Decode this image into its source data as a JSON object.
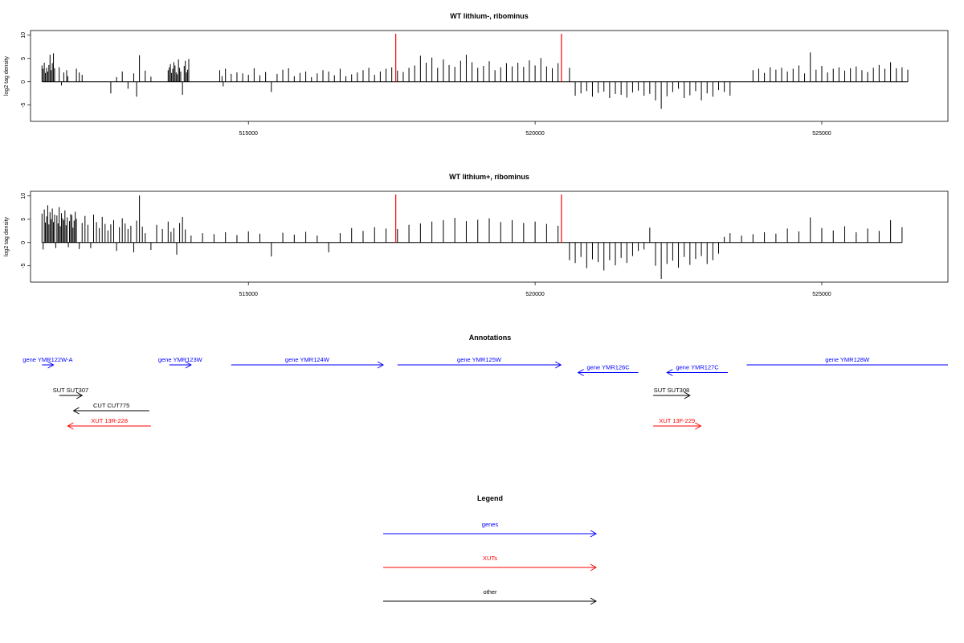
{
  "chart_data": [
    {
      "type": "bar",
      "title": "WT lithium-, ribominus",
      "xlabel": "",
      "ylabel": "log2 tag density",
      "xlim": [
        511200,
        527200
      ],
      "ylim": [
        -8.5,
        11
      ],
      "yticks": [
        -5,
        0,
        5,
        10
      ],
      "xticks": [
        515000,
        520000,
        525000
      ],
      "highlight_lines_x": [
        517570,
        520460
      ],
      "highlight_color": "#ff0000",
      "bar_color": "#000000",
      "x": [
        511400,
        511420,
        511440,
        511460,
        511480,
        511500,
        511520,
        511540,
        511560,
        511580,
        511600,
        511620,
        511700,
        511740,
        511780,
        511830,
        511850,
        512000,
        512050,
        512100,
        512600,
        512700,
        512800,
        512900,
        513000,
        513050,
        513100,
        513200,
        513300,
        513600,
        513620,
        513640,
        513660,
        513680,
        513700,
        513720,
        513740,
        513760,
        513780,
        513800,
        513820,
        513850,
        513880,
        513900,
        513920,
        513940,
        513960,
        514500,
        514540,
        514560,
        514600,
        514700,
        514800,
        514900,
        515000,
        515100,
        515200,
        515300,
        515400,
        515500,
        515600,
        515700,
        515800,
        515900,
        516000,
        516100,
        516200,
        516300,
        516400,
        516500,
        516600,
        516700,
        516800,
        516900,
        517000,
        517100,
        517200,
        517300,
        517400,
        517500,
        517600,
        517700,
        517800,
        517900,
        518000,
        518100,
        518200,
        518300,
        518400,
        518500,
        518600,
        518700,
        518800,
        518900,
        519000,
        519100,
        519200,
        519300,
        519400,
        519500,
        519600,
        519700,
        519800,
        519900,
        520000,
        520100,
        520200,
        520300,
        520400,
        520600,
        520700,
        520800,
        520900,
        521000,
        521100,
        521200,
        521300,
        521400,
        521500,
        521600,
        521700,
        521800,
        521900,
        522000,
        522100,
        522200,
        522300,
        522400,
        522500,
        522600,
        522700,
        522800,
        522900,
        523000,
        523100,
        523200,
        523300,
        523400,
        523800,
        523900,
        524000,
        524100,
        524200,
        524300,
        524400,
        524500,
        524600,
        524700,
        524800,
        524900,
        525000,
        525100,
        525200,
        525300,
        525400,
        525500,
        525600,
        525700,
        525800,
        525900,
        526000,
        526100,
        526200,
        526300,
        526400,
        526500
      ],
      "values": [
        3.5,
        2.8,
        4.1,
        1.9,
        3.0,
        2.2,
        3.6,
        5.8,
        2.5,
        4.0,
        6.1,
        2.9,
        3.1,
        -0.8,
        2.0,
        2.5,
        1.2,
        2.8,
        2.0,
        1.5,
        -2.5,
        1.0,
        2.2,
        -1.5,
        1.8,
        -3.2,
        5.7,
        2.4,
        1.1,
        2.5,
        3.1,
        3.8,
        1.9,
        2.8,
        4.2,
        3.5,
        2.0,
        1.6,
        4.8,
        3.0,
        2.2,
        -2.8,
        3.4,
        4.5,
        2.0,
        2.6,
        4.9,
        2.5,
        1.2,
        -1.0,
        2.8,
        1.7,
        2.0,
        1.8,
        1.5,
        2.9,
        1.4,
        2.1,
        -2.2,
        1.7,
        2.6,
        2.9,
        1.2,
        1.9,
        2.2,
        1.0,
        1.8,
        2.5,
        2.2,
        1.4,
        2.8,
        1.2,
        1.6,
        2.0,
        2.5,
        3.0,
        1.5,
        2.2,
        2.8,
        3.1,
        2.4,
        2.1,
        3.0,
        3.5,
        5.6,
        4.1,
        5.2,
        3.0,
        4.8,
        3.6,
        3.2,
        4.5,
        5.8,
        4.2,
        3.0,
        3.4,
        4.4,
        2.5,
        3.1,
        4.0,
        3.3,
        4.1,
        3.2,
        4.6,
        3.5,
        5.1,
        3.3,
        2.9,
        4.0,
        3.0,
        -3.0,
        -2.5,
        -2.0,
        -3.2,
        -2.4,
        -2.1,
        -3.5,
        -2.6,
        -2.8,
        -3.4,
        -2.3,
        -1.9,
        -3.0,
        -2.6,
        -4.0,
        -5.8,
        -3.1,
        -2.2,
        -1.5,
        -3.5,
        -2.9,
        -2.0,
        -4.0,
        -2.5,
        -3.2,
        -1.8,
        -2.2,
        -3.0,
        2.5,
        2.8,
        1.9,
        3.1,
        2.6,
        3.0,
        2.2,
        2.8,
        3.5,
        1.8,
        6.3,
        2.6,
        3.4,
        2.0,
        2.8,
        3.1,
        2.4,
        2.9,
        3.3,
        2.5,
        2.1,
        3.0,
        3.6,
        2.8,
        4.2,
        2.9,
        3.1,
        2.6
      ]
    },
    {
      "type": "bar",
      "title": "WT lithium+, ribominus",
      "xlabel": "",
      "ylabel": "log2 tag density",
      "xlim": [
        511200,
        527200
      ],
      "ylim": [
        -8.5,
        11
      ],
      "yticks": [
        -5,
        0,
        5,
        10
      ],
      "xticks": [
        515000,
        520000,
        525000
      ],
      "highlight_lines_x": [
        517570,
        520460
      ],
      "highlight_color": "#ff0000",
      "bar_color": "#000000",
      "x": [
        511400,
        511420,
        511440,
        511460,
        511480,
        511500,
        511520,
        511540,
        511560,
        511580,
        511600,
        511620,
        511640,
        511660,
        511680,
        511700,
        511720,
        511740,
        511760,
        511780,
        511800,
        511820,
        511840,
        511860,
        511880,
        511900,
        511920,
        511940,
        511960,
        511980,
        512000,
        512050,
        512100,
        512150,
        512200,
        512250,
        512300,
        512350,
        512400,
        512450,
        512500,
        512550,
        512600,
        512650,
        512700,
        512750,
        512800,
        512850,
        512900,
        512950,
        513000,
        513050,
        513100,
        513150,
        513200,
        513300,
        513400,
        513500,
        513600,
        513650,
        513700,
        513750,
        513800,
        513850,
        513900,
        514000,
        514200,
        514400,
        514600,
        514800,
        515000,
        515200,
        515400,
        515600,
        515800,
        516000,
        516200,
        516400,
        516600,
        516800,
        517000,
        517200,
        517400,
        517600,
        517800,
        518000,
        518200,
        518400,
        518600,
        518800,
        519000,
        519200,
        519400,
        519600,
        519800,
        520000,
        520200,
        520400,
        520600,
        520700,
        520800,
        520900,
        521000,
        521100,
        521200,
        521300,
        521400,
        521500,
        521600,
        521700,
        521800,
        521900,
        522000,
        522100,
        522200,
        522300,
        522400,
        522500,
        522600,
        522700,
        522800,
        522900,
        523000,
        523100,
        523200,
        523300,
        523400,
        523600,
        523800,
        524000,
        524200,
        524400,
        524600,
        524800,
        525000,
        525200,
        525400,
        525600,
        525800,
        526000,
        526200,
        526400
      ],
      "values": [
        6.2,
        -1.5,
        7.1,
        4.3,
        5.6,
        8.0,
        3.9,
        6.5,
        5.0,
        7.3,
        4.4,
        6.0,
        -1.2,
        5.8,
        4.1,
        7.6,
        3.5,
        6.3,
        5.2,
        4.8,
        6.9,
        3.7,
        5.4,
        -1.0,
        4.6,
        6.1,
        5.9,
        3.2,
        4.7,
        6.6,
        5.1,
        -1.4,
        4.2,
        5.7,
        3.8,
        -1.2,
        6.0,
        4.4,
        3.1,
        5.5,
        4.0,
        2.6,
        3.9,
        4.8,
        -1.8,
        3.3,
        5.2,
        4.1,
        2.9,
        3.6,
        -2.1,
        4.7,
        10.1,
        3.4,
        2.0,
        -1.6,
        3.8,
        2.9,
        4.5,
        2.3,
        3.1,
        -2.6,
        4.2,
        5.5,
        2.8,
        1.5,
        2.0,
        1.8,
        2.2,
        1.6,
        2.4,
        1.9,
        -3.0,
        2.1,
        1.7,
        2.3,
        1.5,
        -2.1,
        2.0,
        3.1,
        2.5,
        3.3,
        3.0,
        2.9,
        3.8,
        4.1,
        4.5,
        4.8,
        5.3,
        4.6,
        4.9,
        5.2,
        4.4,
        4.8,
        4.2,
        4.5,
        4.0,
        3.6,
        -3.8,
        -4.4,
        -3.1,
        -5.5,
        -3.6,
        -4.2,
        -6.0,
        -3.8,
        -4.9,
        -3.3,
        -4.4,
        -2.9,
        -1.8,
        -1.5,
        3.2,
        -5.0,
        -7.8,
        -4.6,
        -3.9,
        -5.4,
        -3.1,
        -4.8,
        -3.5,
        -2.9,
        -4.6,
        -3.8,
        -2.4,
        1.2,
        2.0,
        1.5,
        1.8,
        2.2,
        1.9,
        3.0,
        2.4,
        5.4,
        3.1,
        2.6,
        3.5,
        2.2,
        3.0,
        2.5,
        4.8,
        3.3
      ]
    }
  ],
  "annotations": {
    "title": "Annotations",
    "items": [
      {
        "label": "gene YMR122W-A",
        "start": 511400,
        "end": 511600,
        "dir": "right",
        "row": 0,
        "color": "#0000ff"
      },
      {
        "label": "gene YMR123W",
        "start": 513620,
        "end": 514000,
        "dir": "right",
        "row": 0,
        "color": "#0000ff"
      },
      {
        "label": "gene YMR124W",
        "start": 514700,
        "end": 517350,
        "dir": "right",
        "row": 0,
        "color": "#0000ff"
      },
      {
        "label": "gene YMR125W",
        "start": 517600,
        "end": 520450,
        "dir": "right",
        "row": 0,
        "color": "#0000ff"
      },
      {
        "label": "gene YMR126C",
        "start": 520750,
        "end": 521800,
        "dir": "left",
        "row": 0.5,
        "color": "#0000ff"
      },
      {
        "label": "gene YMR127C",
        "start": 522300,
        "end": 523360,
        "dir": "left",
        "row": 0.5,
        "color": "#0000ff"
      },
      {
        "label": "gene YMR128W",
        "start": 523690,
        "end": 527200,
        "dir": "right",
        "row": 0,
        "color": "#0000ff"
      },
      {
        "label": "SUT SUT307",
        "start": 511700,
        "end": 512100,
        "dir": "right",
        "row": 2,
        "color": "#000000"
      },
      {
        "label": "SUT SUT308",
        "start": 522060,
        "end": 522700,
        "dir": "right",
        "row": 2,
        "color": "#000000"
      },
      {
        "label": "CUT CUT775",
        "start": 511950,
        "end": 513270,
        "dir": "left",
        "row": 3,
        "color": "#000000"
      },
      {
        "label": "XUT 13R-228",
        "start": 511850,
        "end": 513300,
        "dir": "left",
        "row": 4,
        "color": "#ff0000"
      },
      {
        "label": "XUT 13F-229",
        "start": 522060,
        "end": 522890,
        "dir": "right",
        "row": 4,
        "color": "#ff0000"
      }
    ]
  },
  "legend": {
    "title": "Legend",
    "items": [
      {
        "label": "genes",
        "color": "#0000ff"
      },
      {
        "label": "XUTs",
        "color": "#ff0000"
      },
      {
        "label": "other",
        "color": "#000000"
      }
    ]
  }
}
